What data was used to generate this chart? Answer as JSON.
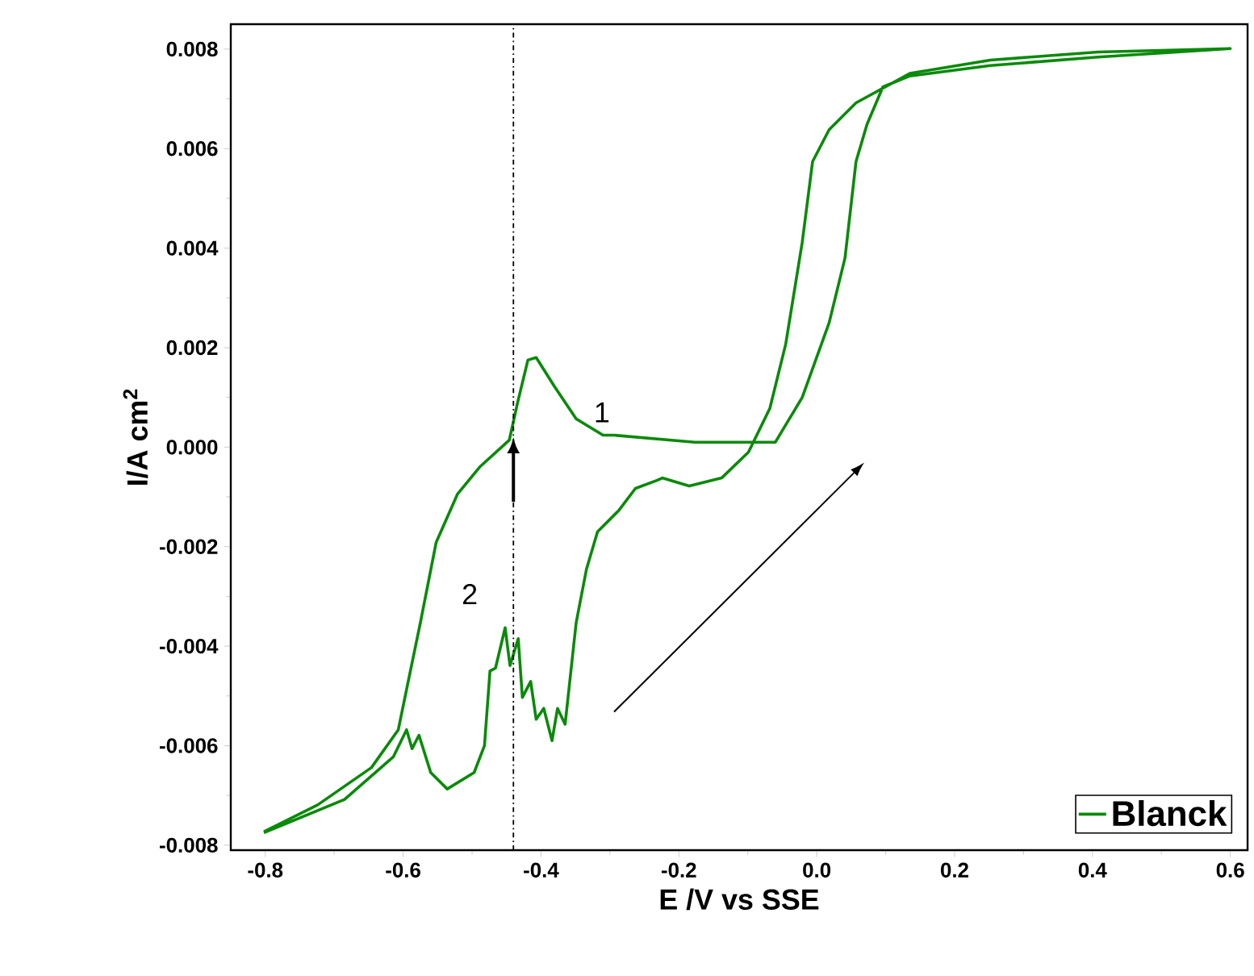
{
  "chart_data": {
    "type": "line",
    "xlabel": "E /V vs SSE",
    "ylabel": "I/A cm$^{2}$",
    "xlim": [
      -0.85,
      0.625
    ],
    "ylim": [
      -0.0081,
      0.0085
    ],
    "xticks": [
      {
        "value": -0.8,
        "label": "-0.8"
      },
      {
        "value": -0.6,
        "label": "-0.6"
      },
      {
        "value": -0.4,
        "label": "-0.4"
      },
      {
        "value": -0.2,
        "label": "-0.2"
      },
      {
        "value": 0,
        "label": "0.0"
      },
      {
        "value": 0.2,
        "label": "0.2"
      },
      {
        "value": 0.4,
        "label": "0.4"
      },
      {
        "value": 0.6,
        "label": "0.6"
      }
    ],
    "yticks": [
      {
        "value": -0.008,
        "label": "-0.008"
      },
      {
        "value": -0.006,
        "label": "-0.006"
      },
      {
        "value": -0.004,
        "label": "-0.004"
      },
      {
        "value": -0.002,
        "label": "-0.002"
      },
      {
        "value": 0,
        "label": "0.000"
      },
      {
        "value": 0.002,
        "label": "0.002"
      },
      {
        "value": 0.004,
        "label": "0.004"
      },
      {
        "value": 0.006,
        "label": "0.006"
      },
      {
        "value": 0.008,
        "label": "0.008"
      }
    ],
    "legend": "bottom right",
    "grid": false,
    "marker": "none",
    "line_style": "solid",
    "series": [
      {
        "name": "Blanck",
        "color": "#0a8a0a",
        "x": [
          -0.802,
          -0.685,
          -0.614,
          -0.595,
          -0.587,
          -0.577,
          -0.56,
          -0.536,
          -0.497,
          -0.482,
          -0.474,
          -0.466,
          -0.452,
          -0.445,
          -0.433,
          -0.427,
          -0.415,
          -0.407,
          -0.396,
          -0.384,
          -0.376,
          -0.365,
          -0.349,
          -0.334,
          -0.318,
          -0.287,
          -0.263,
          -0.232,
          -0.224,
          -0.185,
          -0.138,
          -0.099,
          -0.068,
          -0.045,
          -0.021,
          -0.006,
          0.018,
          0.057,
          0.135,
          0.252,
          0.408,
          0.6,
          0.408,
          0.252,
          0.135,
          0.096,
          0.073,
          0.057,
          0.041,
          0.018,
          -0.021,
          -0.06,
          -0.177,
          -0.294,
          -0.31,
          -0.349,
          -0.38,
          -0.407,
          -0.419,
          -0.434,
          -0.446,
          -0.489,
          -0.521,
          -0.552,
          -0.575,
          -0.591,
          -0.607,
          -0.646,
          -0.724,
          -0.802
        ],
        "values": [
          -0.00775,
          -0.00708,
          -0.00622,
          -0.00568,
          -0.00606,
          -0.00579,
          -0.00654,
          -0.00687,
          -0.00654,
          -0.006,
          -0.0045,
          -0.00444,
          -0.00363,
          -0.00439,
          -0.00385,
          -0.00503,
          -0.00471,
          -0.00547,
          -0.00525,
          -0.0059,
          -0.00525,
          -0.00557,
          -0.00353,
          -0.00245,
          -0.0017,
          -0.00127,
          -0.00083,
          -0.00067,
          -0.00062,
          -0.00078,
          -0.00062,
          -0.0001,
          0.00078,
          0.00207,
          0.00412,
          0.00574,
          0.00638,
          0.00692,
          0.00751,
          0.00778,
          0.00794,
          0.00801,
          0.00784,
          0.00767,
          0.00746,
          0.00724,
          0.00649,
          0.00574,
          0.0038,
          0.0025,
          0.001,
          0.0001,
          0.0001,
          0.00024,
          0.00024,
          0.00057,
          0.00121,
          0.0018,
          0.00175,
          0.00089,
          0.00014,
          -0.0004,
          -0.00094,
          -0.00191,
          -0.00353,
          -0.0046,
          -0.00568,
          -0.00644,
          -0.00719,
          -0.00773
        ]
      }
    ],
    "ref_lines": [
      {
        "axis": "x",
        "value": -0.44,
        "color": "#000000",
        "line_style": "dashdotted"
      }
    ],
    "annotations": [
      "1",
      "2"
    ]
  }
}
